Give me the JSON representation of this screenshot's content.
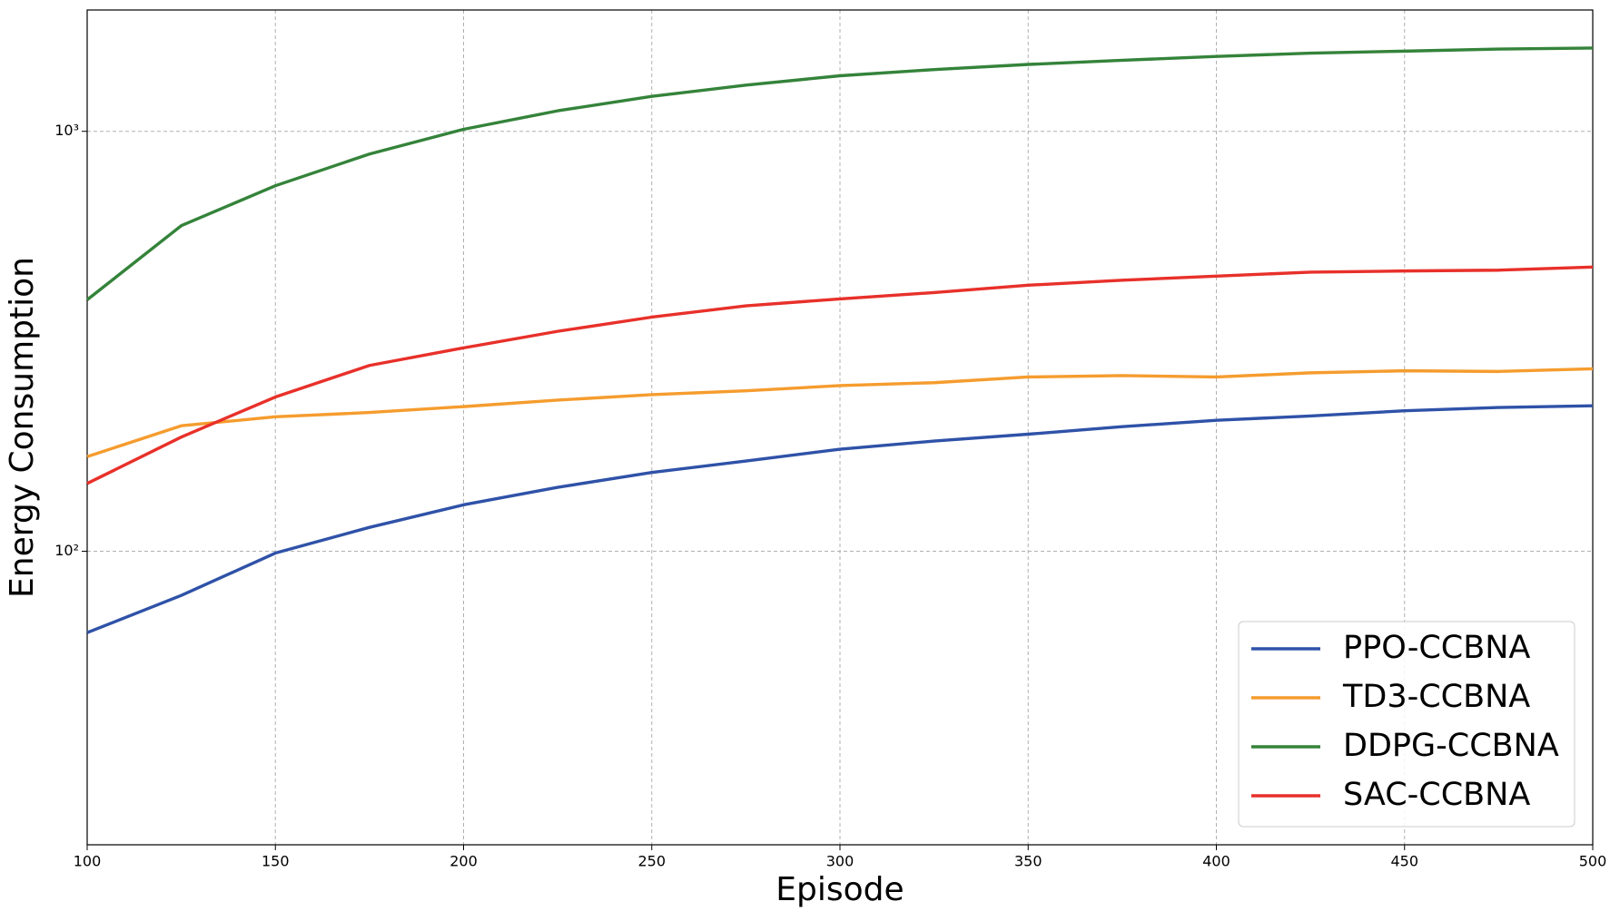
{
  "chart_data": {
    "type": "line",
    "x_label": "Episode",
    "y_label": "Energy Consumption",
    "x": [
      100,
      125,
      150,
      175,
      200,
      225,
      250,
      275,
      300,
      325,
      350,
      375,
      400,
      425,
      450,
      475,
      500
    ],
    "xlim": [
      100,
      500
    ],
    "xticks": [
      100,
      150,
      200,
      250,
      300,
      350,
      400,
      450,
      500
    ],
    "ylim": [
      20,
      1945
    ],
    "yscale": "log",
    "yticks": [
      {
        "value": 100,
        "label": "10²"
      },
      {
        "value": 1000,
        "label": "10³"
      }
    ],
    "grid": true,
    "legend": "lower right",
    "series": [
      {
        "name": "PPO-CCBNA",
        "color": "#2f52a8",
        "values": [
          64,
          78.5,
          99,
          114,
          129,
          142,
          154,
          164,
          175,
          183,
          190,
          198,
          205,
          210,
          216,
          220,
          222
        ]
      },
      {
        "name": "TD3-CCBNA",
        "color": "#f59c2e",
        "values": [
          168,
          199,
          209,
          214,
          221,
          229,
          236,
          241,
          248,
          252,
          260,
          262,
          260,
          266,
          269,
          268,
          272
        ]
      },
      {
        "name": "DDPG-CCBNA",
        "color": "#34833a",
        "values": [
          397,
          596,
          742,
          883,
          1011,
          1119,
          1211,
          1288,
          1356,
          1403,
          1443,
          1476,
          1508,
          1535,
          1552,
          1570,
          1579
        ]
      },
      {
        "name": "SAC-CCBNA",
        "color": "#e8302a",
        "values": [
          145,
          187,
          233,
          277,
          305,
          334,
          361,
          384,
          399,
          413,
          430,
          442,
          452,
          462,
          465,
          467,
          475
        ]
      }
    ]
  }
}
